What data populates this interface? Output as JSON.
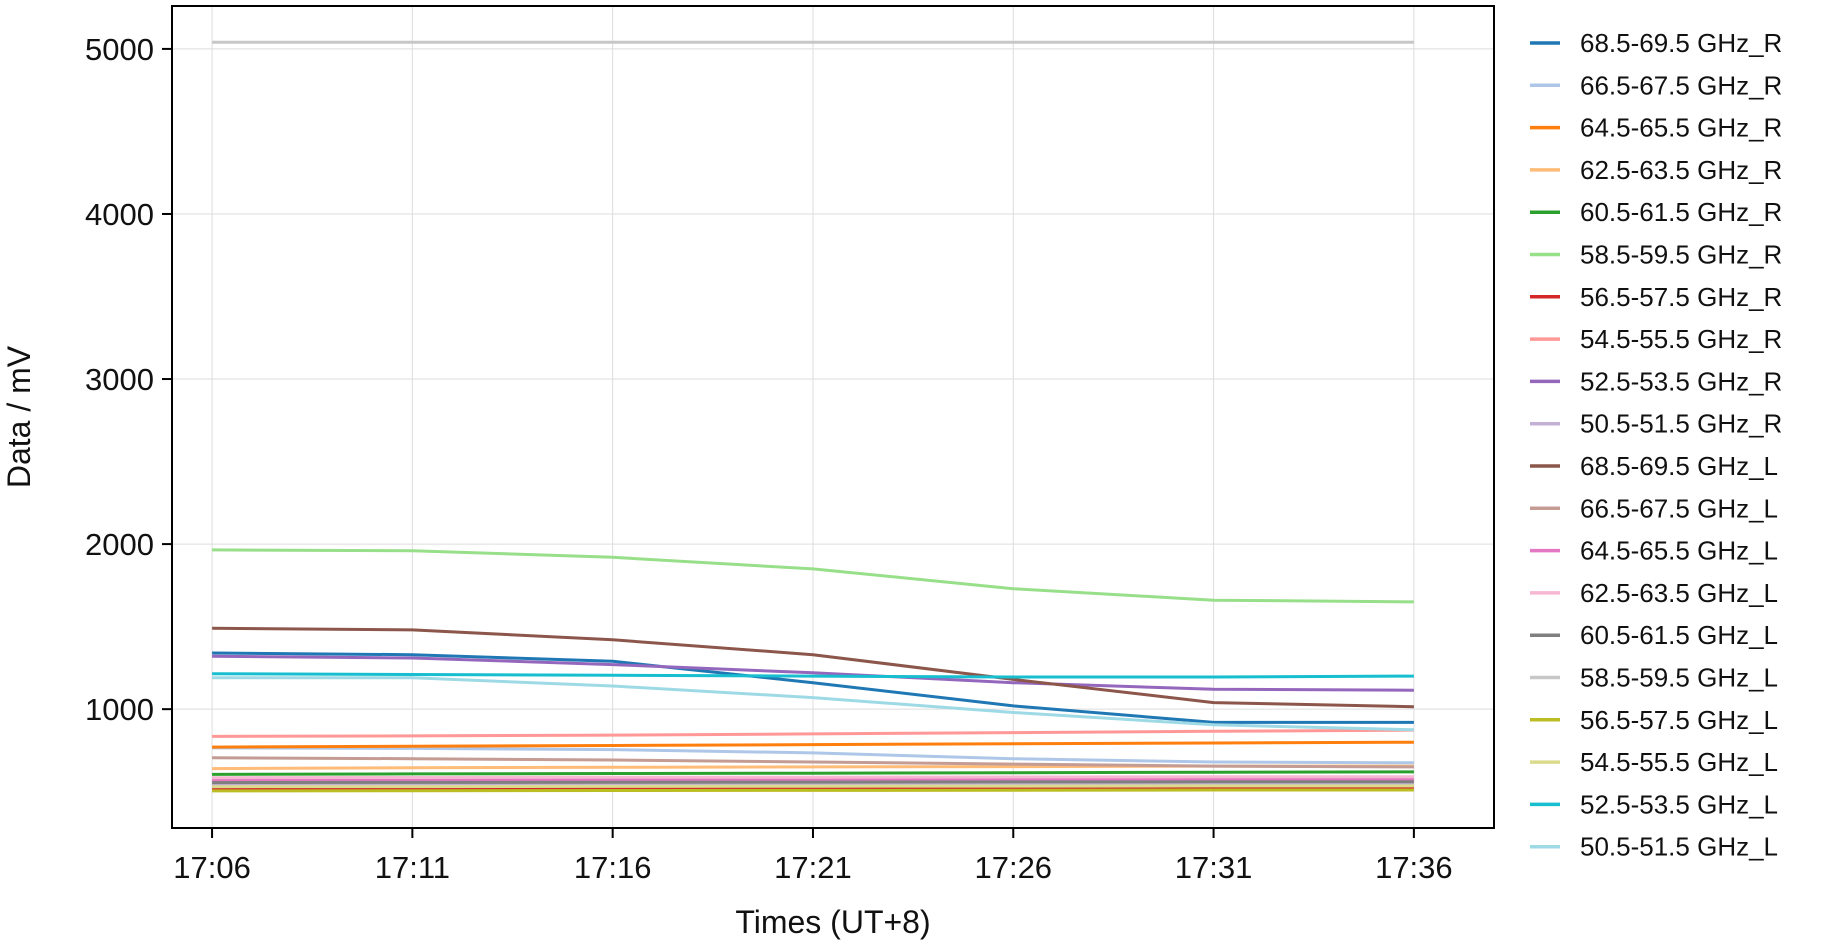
{
  "chart_data": {
    "type": "line",
    "xlabel": "Times (UT+8)",
    "ylabel": "Data / mV",
    "x_ticks": [
      "17:06",
      "17:11",
      "17:16",
      "17:21",
      "17:26",
      "17:31",
      "17:36"
    ],
    "y_ticks": [
      1000,
      2000,
      3000,
      4000,
      5000
    ],
    "xlim": [
      "17:05",
      "17:38"
    ],
    "ylim": [
      280,
      5260
    ],
    "grid": true,
    "legend_position": "outside-right",
    "x": [
      "17:06",
      "17:11",
      "17:16",
      "17:21",
      "17:26",
      "17:31",
      "17:36"
    ],
    "series": [
      {
        "name": "68.5-69.5 GHz_R",
        "color": "#1f77b4",
        "values": [
          1340,
          1330,
          1290,
          1160,
          1020,
          920,
          920
        ]
      },
      {
        "name": "66.5-67.5 GHz_R",
        "color": "#aec7e8",
        "values": [
          765,
          762,
          755,
          735,
          700,
          680,
          675
        ]
      },
      {
        "name": "64.5-65.5 GHz_R",
        "color": "#ff7f0e",
        "values": [
          770,
          775,
          780,
          785,
          790,
          795,
          800
        ]
      },
      {
        "name": "62.5-63.5 GHz_R",
        "color": "#ffbb78",
        "values": [
          640,
          645,
          648,
          650,
          652,
          655,
          655
        ]
      },
      {
        "name": "60.5-61.5 GHz_R",
        "color": "#2ca02c",
        "values": [
          605,
          608,
          610,
          612,
          615,
          618,
          620
        ]
      },
      {
        "name": "58.5-59.5 GHz_R",
        "color": "#98df8a",
        "values": [
          1965,
          1960,
          1920,
          1850,
          1730,
          1660,
          1650
        ]
      },
      {
        "name": "56.5-57.5 GHz_R",
        "color": "#d62728",
        "values": [
          520,
          520,
          521,
          522,
          523,
          524,
          525
        ]
      },
      {
        "name": "54.5-55.5 GHz_R",
        "color": "#ff9896",
        "values": [
          835,
          838,
          843,
          850,
          858,
          866,
          873
        ]
      },
      {
        "name": "52.5-53.5 GHz_R",
        "color": "#9467bd",
        "values": [
          1320,
          1310,
          1270,
          1220,
          1160,
          1120,
          1115
        ]
      },
      {
        "name": "50.5-51.5 GHz_R",
        "color": "#c5b0d5",
        "values": [
          540,
          541,
          542,
          543,
          544,
          545,
          546
        ]
      },
      {
        "name": "68.5-69.5 GHz_L",
        "color": "#8c564b",
        "values": [
          1490,
          1480,
          1420,
          1330,
          1180,
          1040,
          1015
        ]
      },
      {
        "name": "66.5-67.5 GHz_L",
        "color": "#c49c94",
        "values": [
          705,
          700,
          692,
          680,
          667,
          655,
          650
        ]
      },
      {
        "name": "64.5-65.5 GHz_L",
        "color": "#e377c2",
        "values": [
          570,
          571,
          572,
          573,
          574,
          575,
          575
        ]
      },
      {
        "name": "62.5-63.5 GHz_L",
        "color": "#f7b6d2",
        "values": [
          585,
          586,
          587,
          588,
          589,
          590,
          590
        ]
      },
      {
        "name": "60.5-61.5 GHz_L",
        "color": "#7f7f7f",
        "values": [
          555,
          556,
          557,
          558,
          559,
          560,
          560
        ]
      },
      {
        "name": "58.5-59.5 GHz_L",
        "color": "#c7c7c7",
        "values": [
          5040,
          5040,
          5040,
          5040,
          5040,
          5040,
          5040
        ]
      },
      {
        "name": "56.5-57.5 GHz_L",
        "color": "#bcbd22",
        "values": [
          505,
          506,
          507,
          508,
          509,
          510,
          510
        ]
      },
      {
        "name": "54.5-55.5 GHz_L",
        "color": "#dbdb8d",
        "values": [
          530,
          531,
          532,
          533,
          534,
          535,
          535
        ]
      },
      {
        "name": "52.5-53.5 GHz_L",
        "color": "#17becf",
        "values": [
          1215,
          1210,
          1205,
          1200,
          1195,
          1195,
          1200
        ]
      },
      {
        "name": "50.5-51.5 GHz_L",
        "color": "#9edae5",
        "values": [
          1190,
          1190,
          1140,
          1070,
          980,
          905,
          875
        ]
      }
    ]
  }
}
